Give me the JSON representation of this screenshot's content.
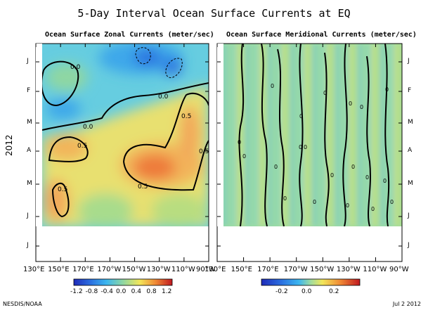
{
  "title": "5-Day Interval Ocean Surface Currents at EQ",
  "y_axis_label": "2012",
  "credit": "NESDIS/NOAA",
  "date": "Jul  2 2012",
  "chart_data": [
    {
      "type": "heatmap",
      "title": "Ocean Surface Zonal Currents (meter/sec)",
      "x_tick_labels": [
        "130°E",
        "150°E",
        "170°E",
        "170°W",
        "150°W",
        "130°W",
        "110°W",
        "90°W"
      ],
      "x_range": [
        130,
        270
      ],
      "y_tick_labels": [
        "J",
        "F",
        "M",
        "A",
        "M",
        "J",
        "J"
      ],
      "y_range_months": [
        0,
        6.5
      ],
      "data_end_month": 5.0,
      "colorbar": {
        "range": [
          -1.2,
          1.2
        ],
        "tick_labels": [
          "-1.2",
          "-0.8",
          "-0.4",
          "0.0",
          "0.4",
          "0.8",
          "1.2"
        ]
      },
      "contour_labels": [
        "0.0",
        "0.0",
        "0.0",
        "0.5",
        "0.5",
        "0.5",
        "0.5",
        "0.5"
      ],
      "features": [
        {
          "lon": 155,
          "month": 1.8,
          "value": -0.4
        },
        {
          "lon": 150,
          "month": 3.2,
          "value": 0.7
        },
        {
          "lon": 208,
          "month": 3.4,
          "value": 0.9
        },
        {
          "lon": 235,
          "month": 3.0,
          "value": 0.8
        },
        {
          "lon": 205,
          "month": 0.2,
          "value": -0.7
        },
        {
          "lon": 225,
          "month": 0.6,
          "value": -0.7
        },
        {
          "lon": 140,
          "month": 4.5,
          "value": 0.6
        }
      ],
      "background_value": -0.1
    },
    {
      "type": "heatmap",
      "title": "Ocean Surface Meridional Currents (meter/sec)",
      "x_tick_labels": [
        "130°E",
        "150°E",
        "170°E",
        "170°W",
        "150°W",
        "130°W",
        "110°W",
        "90°W"
      ],
      "x_range": [
        130,
        270
      ],
      "y_tick_labels": [
        "J",
        "F",
        "M",
        "A",
        "M",
        "J",
        "J"
      ],
      "y_range_months": [
        0,
        6.5
      ],
      "data_end_month": 5.0,
      "colorbar": {
        "range": [
          -0.35,
          0.35
        ],
        "tick_labels": [
          "-0.2",
          "0.0",
          "0.2"
        ]
      },
      "contour_labels": [
        "0",
        "0",
        "0",
        "0",
        "0",
        "0",
        "0",
        "0",
        "0",
        "0",
        "0",
        "0",
        "0",
        "0",
        "0",
        "0",
        "0",
        "0",
        "0",
        "0"
      ],
      "background_value": 0.03
    }
  ]
}
